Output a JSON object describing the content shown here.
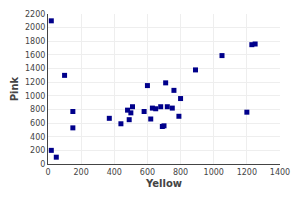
{
  "chart_data": {
    "type": "scatter",
    "x": [
      20,
      20,
      50,
      100,
      150,
      150,
      370,
      440,
      480,
      490,
      500,
      510,
      580,
      600,
      620,
      630,
      650,
      680,
      690,
      700,
      710,
      720,
      750,
      760,
      790,
      800,
      890,
      1050,
      1200,
      1230,
      1250
    ],
    "values": [
      2100,
      200,
      100,
      1300,
      770,
      530,
      670,
      590,
      790,
      650,
      750,
      840,
      770,
      1150,
      660,
      820,
      810,
      840,
      550,
      560,
      1190,
      840,
      820,
      1080,
      700,
      960,
      1380,
      1590,
      760,
      1750,
      1760
    ],
    "xlabel": "Yellow",
    "ylabel": "Pink",
    "xlim": [
      0,
      1400
    ],
    "ylim": [
      0,
      2200
    ],
    "xticks": [
      0,
      200,
      400,
      600,
      800,
      1000,
      1200,
      1400
    ],
    "yticks": [
      0,
      200,
      400,
      600,
      800,
      1000,
      1200,
      1400,
      1600,
      1800,
      2000,
      2200
    ],
    "color": "#00008B",
    "marker": "square",
    "grid": true
  }
}
